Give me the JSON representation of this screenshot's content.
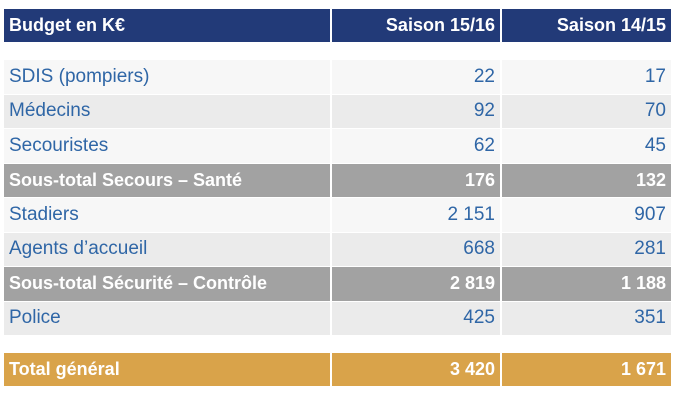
{
  "header": {
    "label": "Budget en K€",
    "col1": "Saison 15/16",
    "col2": "Saison 14/15"
  },
  "rows": [
    {
      "label": "SDIS (pompiers)",
      "v1": "22",
      "v2": "17"
    },
    {
      "label": "Médecins",
      "v1": "92",
      "v2": "70"
    },
    {
      "label": "Secouristes",
      "v1": "62",
      "v2": "45"
    },
    {
      "label": "Sous-total Secours – Santé",
      "v1": "176",
      "v2": "132"
    },
    {
      "label": "Stadiers",
      "v1": "2 151",
      "v2": "907"
    },
    {
      "label": "Agents d’accueil",
      "v1": "668",
      "v2": "281"
    },
    {
      "label": "Sous-total Sécurité – Contrôle",
      "v1": "2 819",
      "v2": "1 188"
    },
    {
      "label": "Police",
      "v1": "425",
      "v2": "351"
    }
  ],
  "total": {
    "label": "Total général",
    "v1": "3 420",
    "v2": "1 671"
  }
}
